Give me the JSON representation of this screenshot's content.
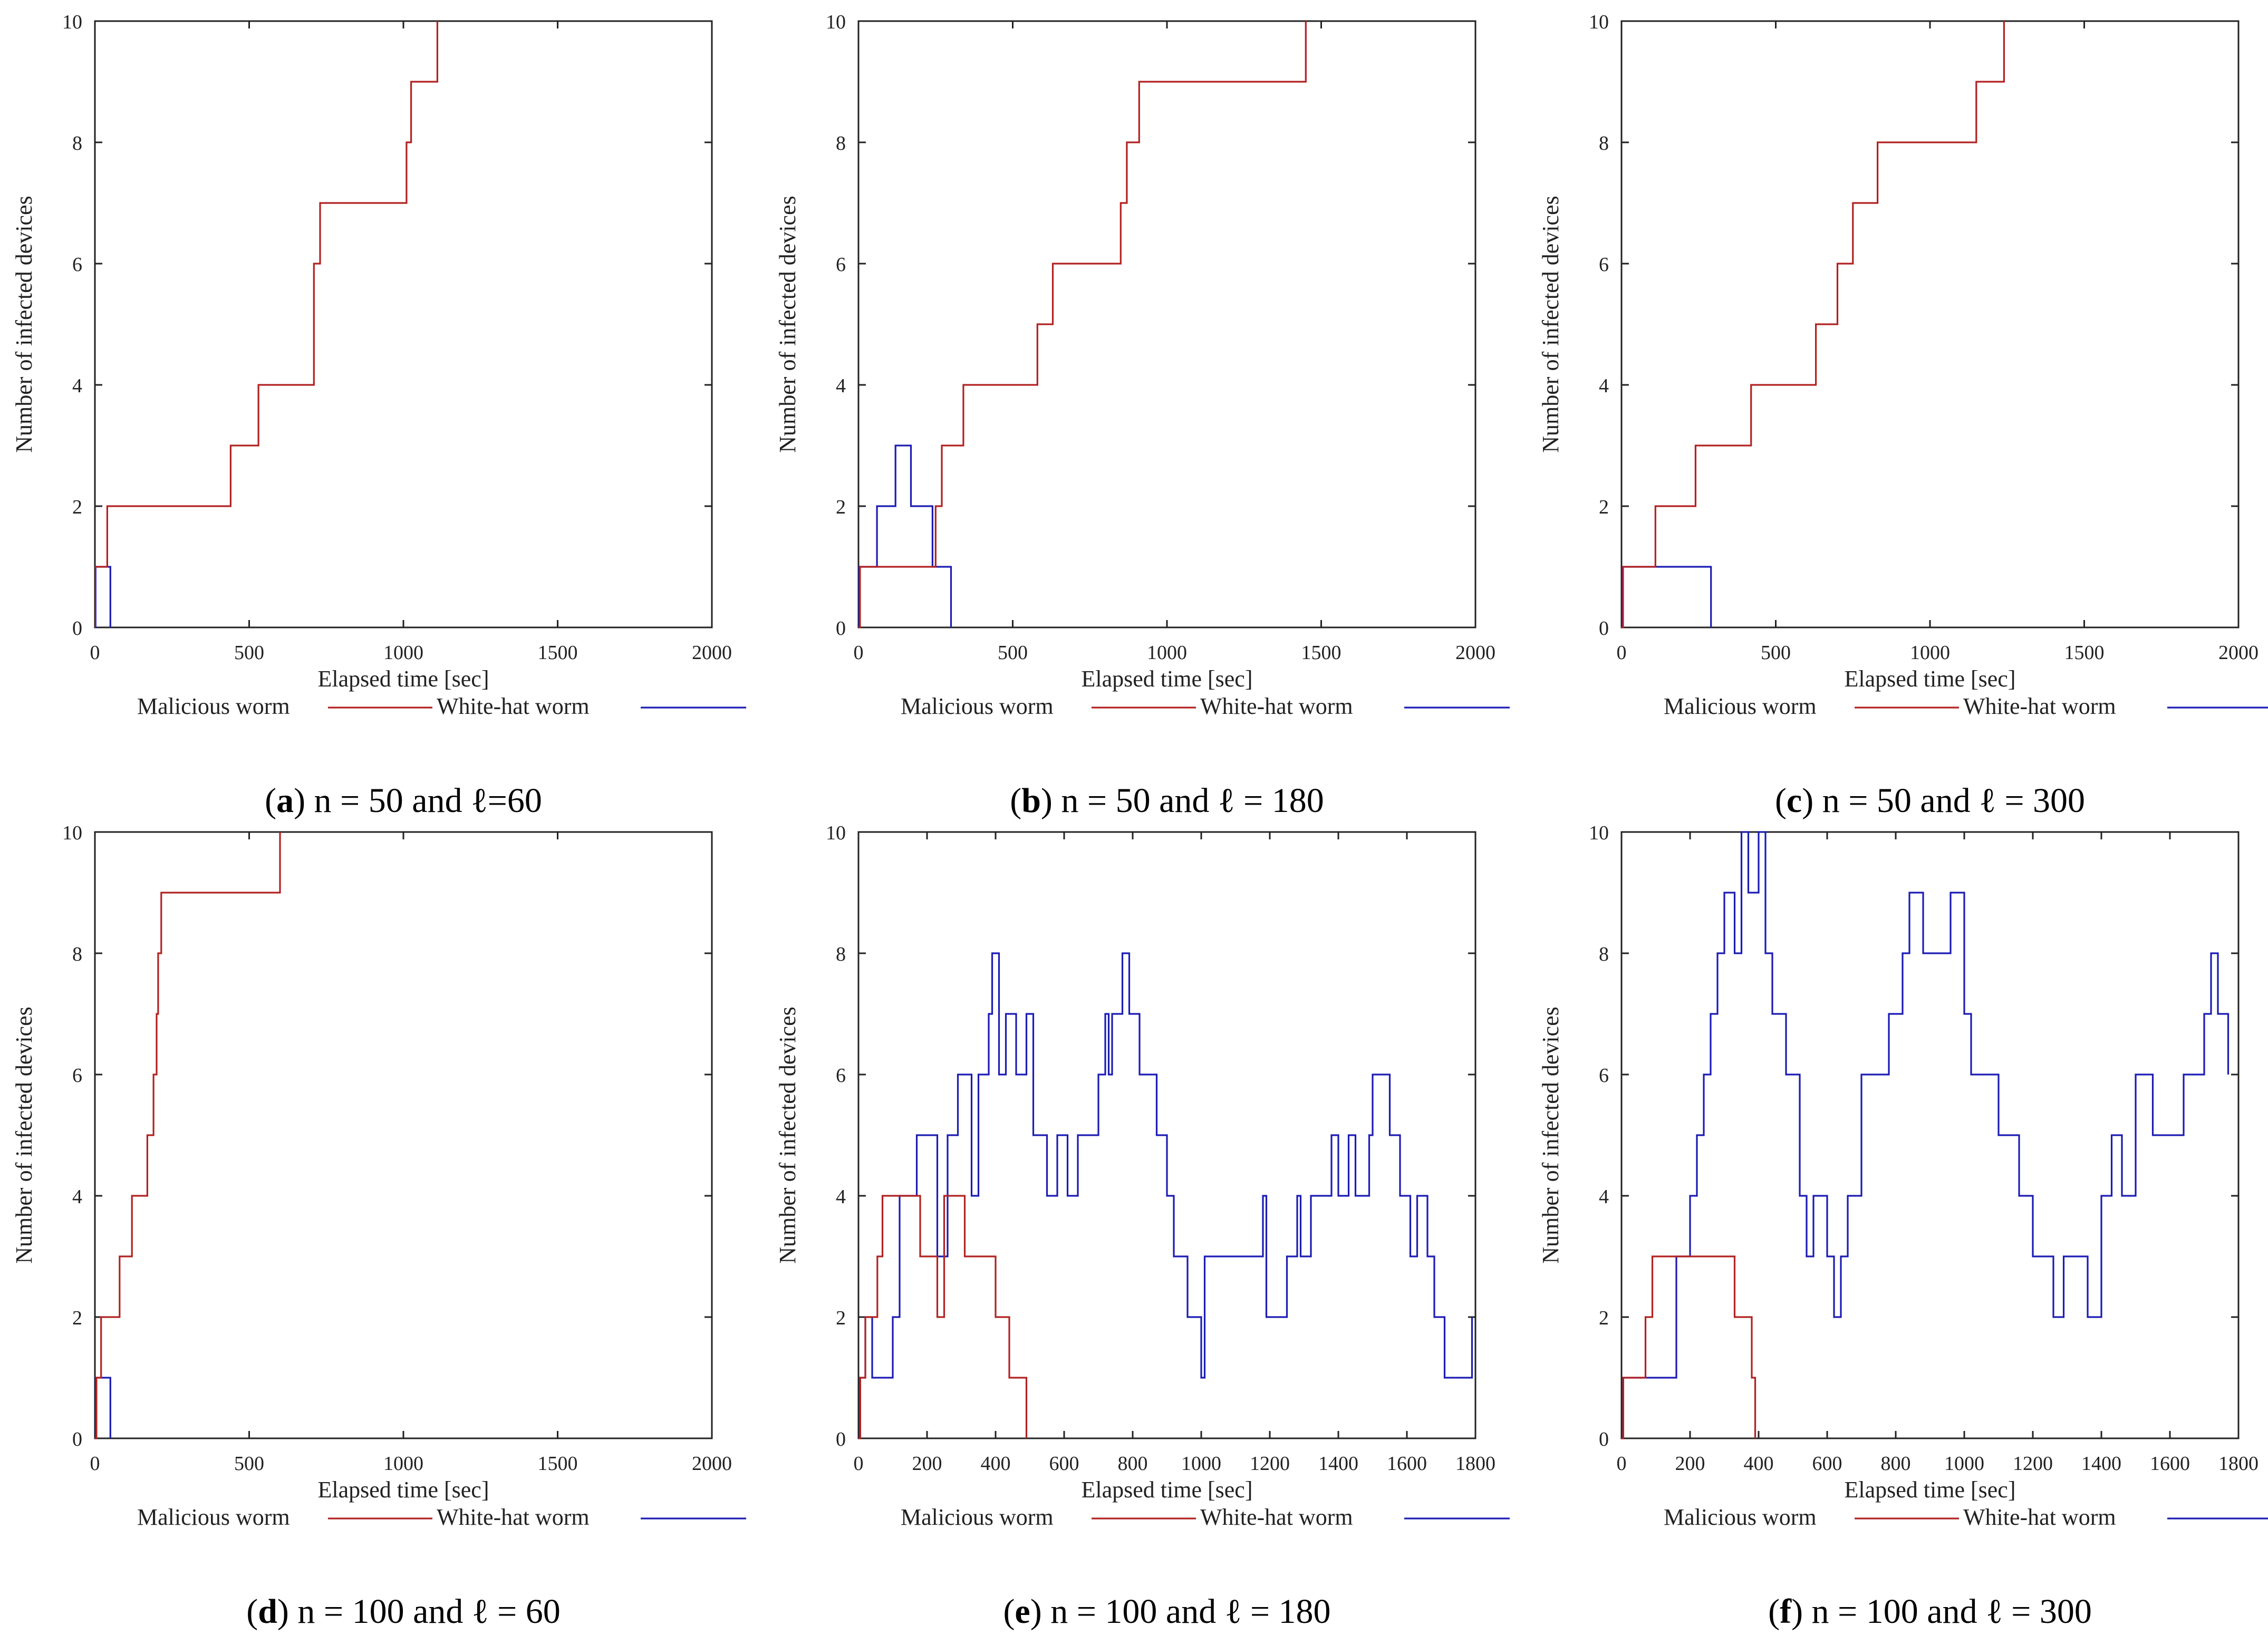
{
  "colors": {
    "malicious": "#b22222",
    "white_hat": "#1c1cb4",
    "frame": "#222222",
    "background": "#ffffff"
  },
  "chart_data": [
    {
      "id": "a",
      "type": "line",
      "xlabel": "Elapsed time [sec]",
      "ylabel": "Number of infected devices",
      "xlim": [
        0,
        2000
      ],
      "ylim": [
        0,
        10
      ],
      "xticks": [
        0,
        500,
        1000,
        1500,
        2000
      ],
      "yticks": [
        0,
        2,
        4,
        6,
        8,
        10
      ],
      "legend_position": "bottom",
      "caption": {
        "label": "a",
        "text": "n = 50 and ℓ=60"
      },
      "series": [
        {
          "name": "Malicious worm",
          "color": "malicious",
          "step": true,
          "x": [
            0,
            0,
            20,
            40,
            440,
            530,
            710,
            730,
            1010,
            1025,
            1110
          ],
          "y": [
            0,
            1,
            1,
            2,
            3,
            4,
            6,
            7,
            8,
            9,
            10
          ]
        },
        {
          "name": "White-hat worm",
          "color": "white_hat",
          "step": true,
          "x": [
            0,
            2,
            50,
            50
          ],
          "y": [
            0,
            1,
            1,
            0
          ]
        }
      ]
    },
    {
      "id": "b",
      "type": "line",
      "xlabel": "Elapsed time [sec]",
      "ylabel": "Number of infected devices",
      "xlim": [
        0,
        2000
      ],
      "ylim": [
        0,
        10
      ],
      "xticks": [
        0,
        500,
        1000,
        1500,
        2000
      ],
      "yticks": [
        0,
        2,
        4,
        6,
        8,
        10
      ],
      "legend_position": "bottom",
      "caption": {
        "label": "b",
        "text": "n = 50 and ℓ = 180"
      },
      "series": [
        {
          "name": "Malicious worm",
          "color": "malicious",
          "step": true,
          "x": [
            0,
            5,
            250,
            270,
            340,
            580,
            630,
            850,
            870,
            910,
            1450
          ],
          "y": [
            0,
            1,
            2,
            3,
            4,
            5,
            6,
            7,
            8,
            9,
            10
          ]
        },
        {
          "name": "White-hat worm",
          "color": "white_hat",
          "step": true,
          "x": [
            0,
            2,
            60,
            120,
            170,
            240,
            300,
            300
          ],
          "y": [
            0,
            1,
            2,
            3,
            2,
            1,
            1,
            0
          ]
        }
      ]
    },
    {
      "id": "c",
      "type": "line",
      "xlabel": "Elapsed time [sec]",
      "ylabel": "Number of infected devices",
      "xlim": [
        0,
        2000
      ],
      "ylim": [
        0,
        10
      ],
      "xticks": [
        0,
        500,
        1000,
        1500,
        2000
      ],
      "yticks": [
        0,
        2,
        4,
        6,
        8,
        10
      ],
      "legend_position": "bottom",
      "caption": {
        "label": "c",
        "text": "n = 50 and ℓ = 300"
      },
      "series": [
        {
          "name": "Malicious worm",
          "color": "malicious",
          "step": true,
          "x": [
            0,
            5,
            110,
            240,
            420,
            630,
            700,
            750,
            830,
            1150,
            1240
          ],
          "y": [
            0,
            1,
            2,
            3,
            4,
            5,
            6,
            7,
            8,
            9,
            10
          ]
        },
        {
          "name": "White-hat worm",
          "color": "white_hat",
          "step": true,
          "x": [
            0,
            2,
            290,
            290
          ],
          "y": [
            0,
            1,
            1,
            0
          ]
        }
      ]
    },
    {
      "id": "d",
      "type": "line",
      "xlabel": "Elapsed time [sec]",
      "ylabel": "Number of infected devices",
      "xlim": [
        0,
        2000
      ],
      "ylim": [
        0,
        10
      ],
      "xticks": [
        0,
        500,
        1000,
        1500,
        2000
      ],
      "yticks": [
        0,
        2,
        4,
        6,
        8,
        10
      ],
      "legend_position": "bottom",
      "caption": {
        "label": "d",
        "text": "n = 100 and ℓ = 60"
      },
      "series": [
        {
          "name": "Malicious worm",
          "color": "malicious",
          "step": true,
          "x": [
            0,
            5,
            20,
            80,
            120,
            170,
            190,
            200,
            205,
            215,
            600
          ],
          "y": [
            0,
            1,
            2,
            3,
            4,
            5,
            6,
            7,
            8,
            9,
            10
          ]
        },
        {
          "name": "White-hat worm",
          "color": "white_hat",
          "step": true,
          "x": [
            0,
            2,
            50,
            50
          ],
          "y": [
            0,
            1,
            1,
            0
          ]
        }
      ]
    },
    {
      "id": "e",
      "type": "line",
      "xlabel": "Elapsed time [sec]",
      "ylabel": "Number of infected devices",
      "xlim": [
        0,
        1800
      ],
      "ylim": [
        0,
        10
      ],
      "xticks": [
        0,
        200,
        400,
        600,
        800,
        1000,
        1200,
        1400,
        1600,
        1800
      ],
      "yticks": [
        0,
        2,
        4,
        6,
        8,
        10
      ],
      "legend_position": "bottom",
      "caption": {
        "label": "e",
        "text": "n = 100 and ℓ = 180"
      },
      "series": [
        {
          "name": "Malicious worm",
          "color": "malicious",
          "step": true,
          "x": [
            0,
            5,
            20,
            55,
            70,
            180,
            230,
            250,
            310,
            400,
            440,
            490,
            490
          ],
          "y": [
            0,
            1,
            2,
            3,
            4,
            3,
            2,
            4,
            3,
            2,
            1,
            0,
            0
          ]
        },
        {
          "name": "White-hat worm",
          "color": "white_hat",
          "step": true,
          "x": [
            0,
            5,
            20,
            40,
            100,
            120,
            170,
            230,
            260,
            290,
            330,
            350,
            380,
            390,
            410,
            430,
            460,
            490,
            510,
            550,
            580,
            610,
            640,
            700,
            720,
            730,
            740,
            770,
            790,
            820,
            870,
            900,
            920,
            960,
            1000,
            1010,
            1180,
            1190,
            1250,
            1280,
            1290,
            1320,
            1380,
            1400,
            1430,
            1450,
            1490,
            1500,
            1550,
            1580,
            1610,
            1630,
            1660,
            1680,
            1710,
            1790
          ],
          "y": [
            0,
            1,
            2,
            1,
            2,
            4,
            5,
            3,
            5,
            6,
            4,
            6,
            7,
            8,
            6,
            7,
            6,
            7,
            5,
            4,
            5,
            4,
            5,
            6,
            7,
            6,
            7,
            8,
            7,
            6,
            5,
            4,
            3,
            2,
            1,
            3,
            4,
            2,
            3,
            4,
            3,
            4,
            5,
            4,
            5,
            4,
            5,
            6,
            5,
            4,
            3,
            4,
            3,
            2,
            1,
            2
          ]
        }
      ]
    },
    {
      "id": "f",
      "type": "line",
      "xlabel": "Elapsed time [sec]",
      "ylabel": "Number of infected devices",
      "xlim": [
        0,
        1800
      ],
      "ylim": [
        0,
        10
      ],
      "xticks": [
        0,
        200,
        400,
        600,
        800,
        1000,
        1200,
        1400,
        1600,
        1800
      ],
      "yticks": [
        0,
        2,
        4,
        6,
        8,
        10
      ],
      "legend_position": "bottom",
      "caption": {
        "label": "f",
        "text": "n = 100 and ℓ = 300"
      },
      "series": [
        {
          "name": "Malicious worm",
          "color": "malicious",
          "step": true,
          "x": [
            0,
            5,
            70,
            90,
            310,
            330,
            380,
            390,
            390
          ],
          "y": [
            0,
            1,
            2,
            3,
            3,
            2,
            1,
            0,
            0
          ]
        },
        {
          "name": "White-hat worm",
          "color": "white_hat",
          "step": true,
          "x": [
            0,
            5,
            160,
            200,
            220,
            240,
            260,
            280,
            300,
            330,
            350,
            370,
            400,
            420,
            440,
            480,
            520,
            540,
            560,
            600,
            620,
            640,
            660,
            700,
            780,
            820,
            840,
            880,
            960,
            1000,
            1020,
            1100,
            1160,
            1200,
            1260,
            1290,
            1360,
            1400,
            1430,
            1460,
            1500,
            1550,
            1640,
            1700,
            1720,
            1740,
            1770
          ],
          "y": [
            0,
            1,
            3,
            4,
            5,
            6,
            7,
            8,
            9,
            8,
            10,
            9,
            10,
            8,
            7,
            6,
            4,
            3,
            4,
            3,
            2,
            3,
            4,
            6,
            7,
            8,
            9,
            8,
            9,
            7,
            6,
            5,
            4,
            3,
            2,
            3,
            2,
            4,
            5,
            4,
            6,
            5,
            6,
            7,
            8,
            7,
            6
          ]
        }
      ]
    }
  ]
}
